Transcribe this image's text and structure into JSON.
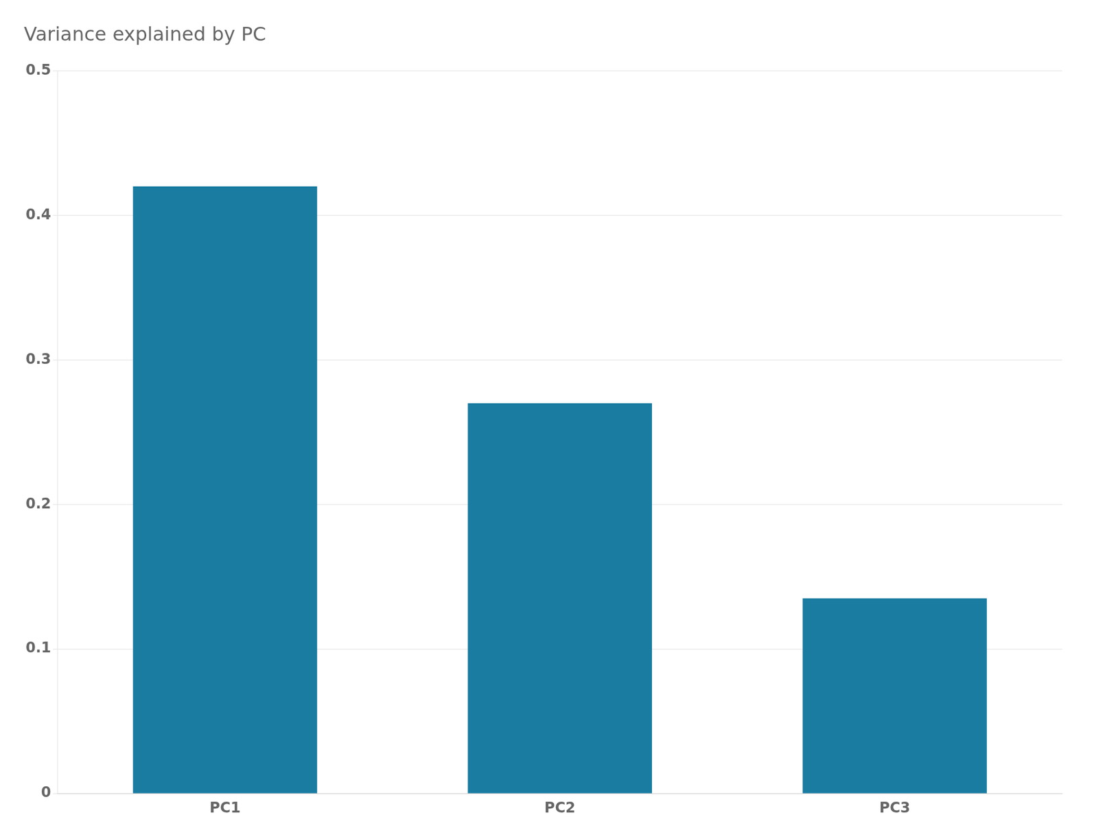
{
  "chart_data": {
    "type": "bar",
    "title": "Variance explained by PC",
    "categories": [
      "PC1",
      "PC2",
      "PC3"
    ],
    "values": [
      0.42,
      0.27,
      0.135
    ],
    "color": "#1a7ca1",
    "ylim": [
      0,
      0.5
    ],
    "yticks": [
      0,
      0.1,
      0.2,
      0.3,
      0.4,
      0.5
    ],
    "grid": true
  }
}
